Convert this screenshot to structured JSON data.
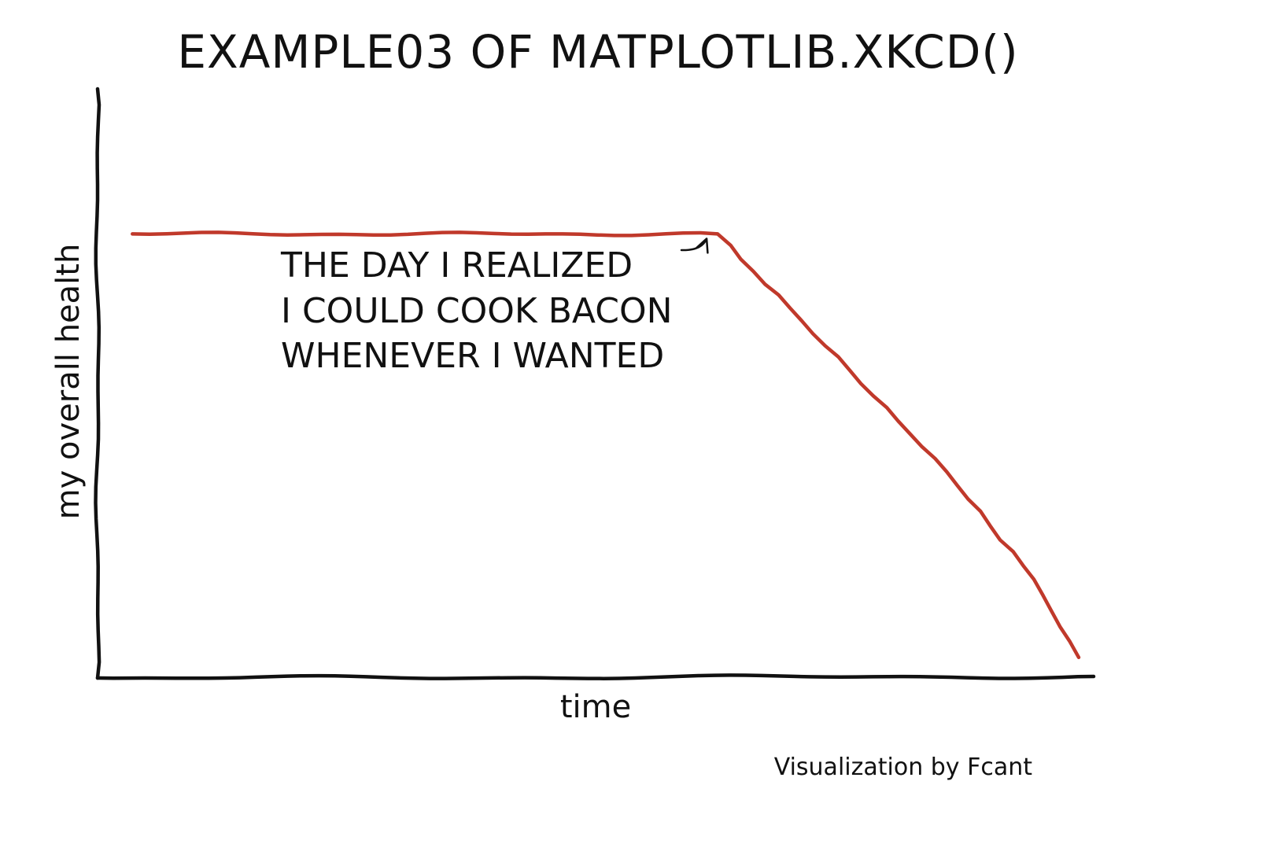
{
  "chart_data": {
    "type": "line",
    "title": "EXAMPLE03 OF MATPLOTLIB.XKCD()",
    "xlabel": "time",
    "ylabel": "my overall health",
    "xlim": [
      -30,
      10
    ],
    "ylim": [
      -30,
      10
    ],
    "x_ticks": [],
    "y_ticks": [],
    "grid": false,
    "series": [
      {
        "color": "#c0392b",
        "x": [
          -28.6,
          -5.1,
          0.2,
          4.1,
          7.6,
          9.4
        ],
        "y": [
          0.15,
          0.15,
          -9.1,
          -16.0,
          -23.3,
          -28.6
        ]
      }
    ],
    "annotations": [
      {
        "lines": [
          "THE DAY I REALIZED",
          "I COULD COOK BACON",
          "WHENEVER I WANTED"
        ],
        "arrow_target": [
          -5.1,
          0.15
        ]
      }
    ],
    "credit": "Visualization by Fcant"
  }
}
